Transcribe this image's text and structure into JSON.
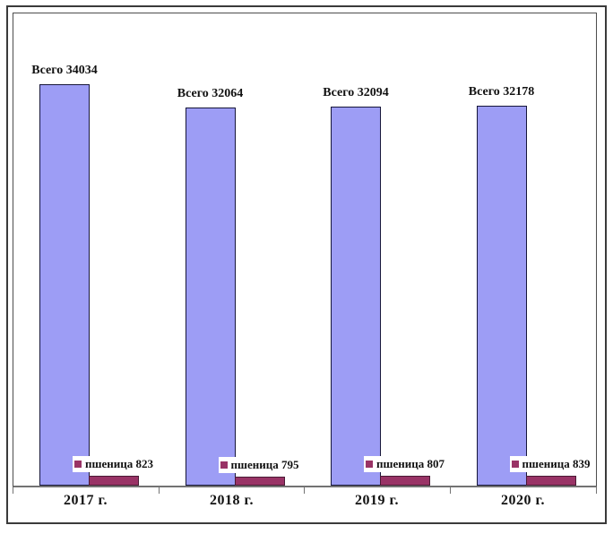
{
  "chart_data": {
    "type": "bar",
    "title": "",
    "xlabel": "",
    "ylabel": "",
    "categories": [
      "2017 г.",
      "2018 г.",
      "2019 г.",
      "2020 г."
    ],
    "series": [
      {
        "name": "Всего",
        "values": [
          34034,
          32064,
          32094,
          32178
        ],
        "color": "#9D9DF5",
        "point_labels": [
          "Всего 34034",
          "Всего 32064",
          "Всего 32094",
          "Всего 32178"
        ]
      },
      {
        "name": "пшеница",
        "values": [
          823,
          795,
          807,
          839
        ],
        "color": "#993366",
        "point_labels": [
          "пшеница 823",
          "пшеница 795",
          "пшеница 807",
          "пшеница 839"
        ]
      }
    ],
    "ylim": [
      0,
      40000
    ],
    "grid": false,
    "legend_position": "none"
  },
  "colors": {
    "total_fill": "#9D9DF5",
    "wheat_fill": "#993366",
    "axis": "#737373",
    "plot_border": "#4D4D4D",
    "frame_border": "#3A3A3A",
    "label_background": "#FFFFFF",
    "text": "#111111"
  }
}
